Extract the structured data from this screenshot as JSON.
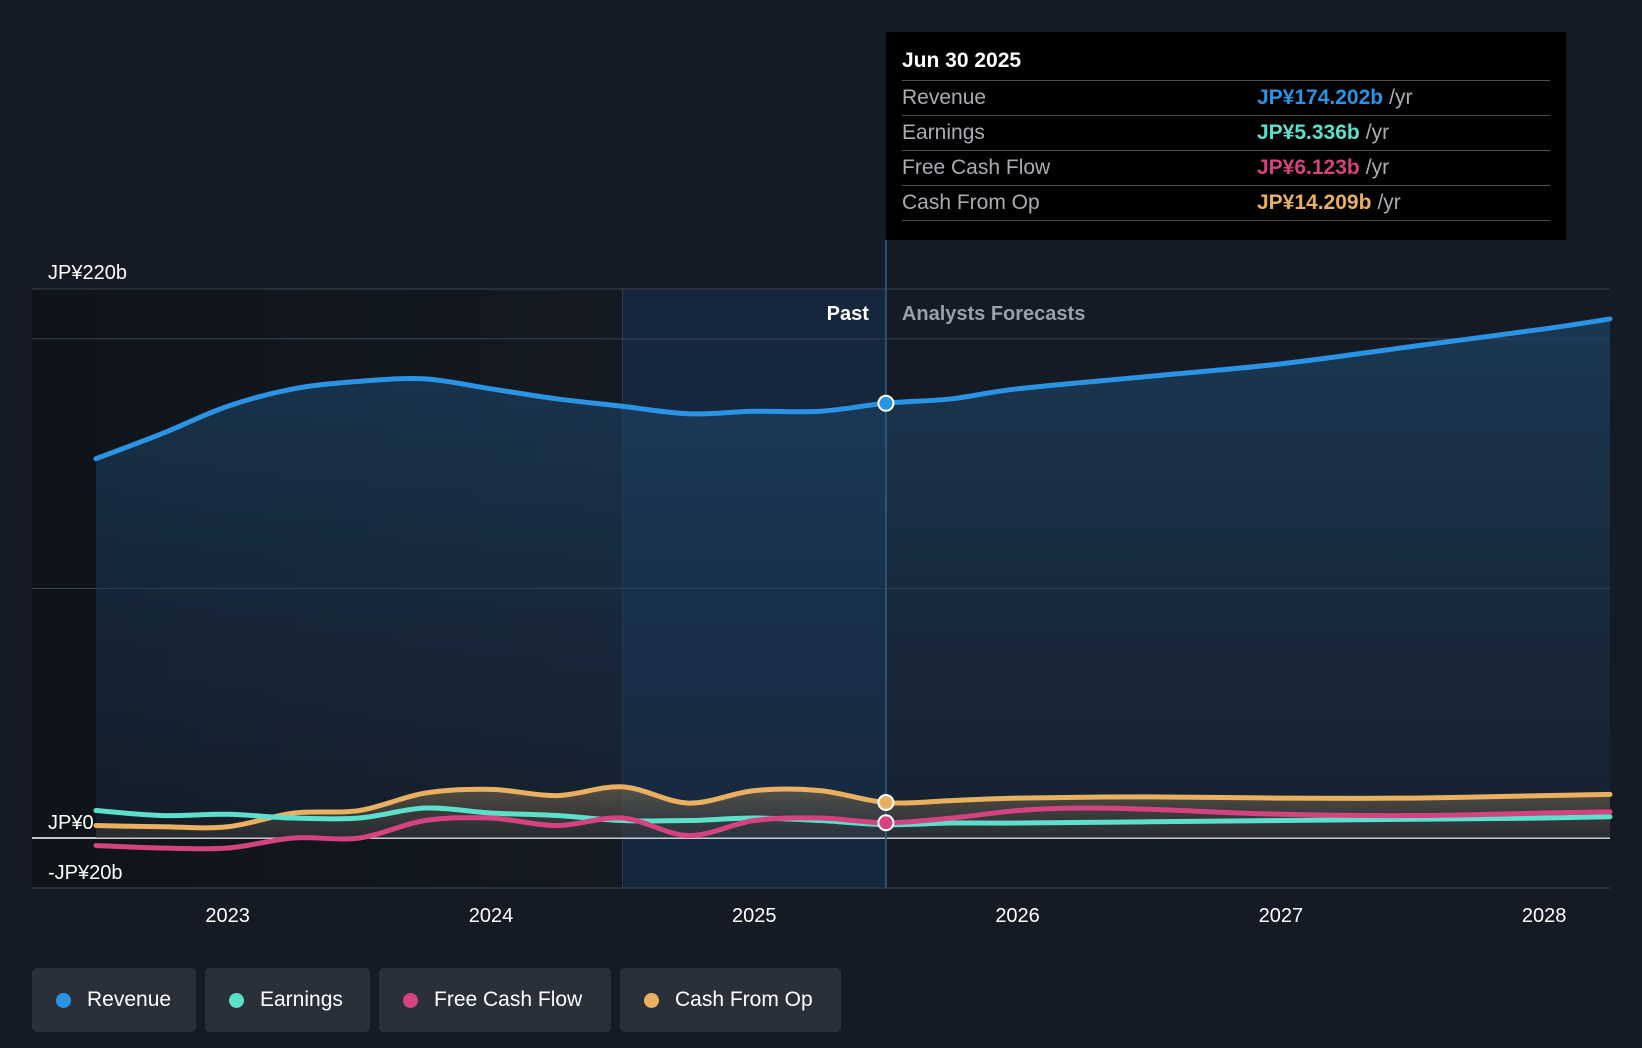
{
  "colors": {
    "revenue": "#2a93e4",
    "earnings": "#5ce0cc",
    "free_cash_flow": "#d4437f",
    "cash_from_op": "#e8b060",
    "background": "#151b24",
    "grid": "#3a4350",
    "zero_line": "#ffffff"
  },
  "tooltip": {
    "date": "Jun 30 2025",
    "rows": [
      {
        "name": "Revenue",
        "value": "JP¥174.202b",
        "unit": "/yr",
        "color": "#2a93e4"
      },
      {
        "name": "Earnings",
        "value": "JP¥5.336b",
        "unit": "/yr",
        "color": "#5ce0cc"
      },
      {
        "name": "Free Cash Flow",
        "value": "JP¥6.123b",
        "unit": "/yr",
        "color": "#d4437f"
      },
      {
        "name": "Cash From Op",
        "value": "JP¥14.209b",
        "unit": "/yr",
        "color": "#e8b060"
      }
    ]
  },
  "legend": [
    {
      "label": "Revenue",
      "color": "#2a93e4"
    },
    {
      "label": "Earnings",
      "color": "#5ce0cc"
    },
    {
      "label": "Free Cash Flow",
      "color": "#d4437f"
    },
    {
      "label": "Cash From Op",
      "color": "#e8b060"
    }
  ],
  "chart_data": {
    "type": "line",
    "title": "",
    "xlabel": "",
    "ylabel": "",
    "xlim": [
      2022.5,
      2028.25
    ],
    "ylim": [
      -20,
      220
    ],
    "y_ticks": [
      {
        "value": 220,
        "label": "JP¥220b"
      },
      {
        "value": 0,
        "label": "JP¥0"
      },
      {
        "value": -20,
        "label": "-JP¥20b"
      }
    ],
    "x_ticks": [
      {
        "value": 2023,
        "label": "2023"
      },
      {
        "value": 2024,
        "label": "2024"
      },
      {
        "value": 2025,
        "label": "2025"
      },
      {
        "value": 2026,
        "label": "2026"
      },
      {
        "value": 2027,
        "label": "2027"
      },
      {
        "value": 2028,
        "label": "2028"
      }
    ],
    "gridlines": [
      200,
      100
    ],
    "past_label": "Past",
    "forecast_label": "Analysts Forecasts",
    "highlight_start": 2024.5,
    "divider_x": 2025.5,
    "series": [
      {
        "name": "Revenue",
        "key": "revenue",
        "fill": true,
        "points": [
          [
            2022.5,
            152
          ],
          [
            2022.75,
            162
          ],
          [
            2023,
            173
          ],
          [
            2023.25,
            180
          ],
          [
            2023.5,
            183
          ],
          [
            2023.75,
            184
          ],
          [
            2024,
            180
          ],
          [
            2024.25,
            176
          ],
          [
            2024.5,
            173
          ],
          [
            2024.75,
            170
          ],
          [
            2025,
            171
          ],
          [
            2025.25,
            171
          ],
          [
            2025.5,
            174.2
          ],
          [
            2025.75,
            176
          ],
          [
            2026,
            180
          ],
          [
            2026.5,
            185
          ],
          [
            2027,
            190
          ],
          [
            2027.5,
            197
          ],
          [
            2028,
            204
          ],
          [
            2028.25,
            208
          ]
        ]
      },
      {
        "name": "Earnings",
        "key": "earnings",
        "fill": false,
        "points": [
          [
            2022.5,
            11
          ],
          [
            2022.75,
            9
          ],
          [
            2023,
            9.5
          ],
          [
            2023.25,
            8
          ],
          [
            2023.5,
            8
          ],
          [
            2023.75,
            12
          ],
          [
            2024,
            10
          ],
          [
            2024.25,
            9
          ],
          [
            2024.5,
            7
          ],
          [
            2024.75,
            7
          ],
          [
            2025,
            8
          ],
          [
            2025.25,
            7
          ],
          [
            2025.5,
            5.34
          ],
          [
            2025.75,
            6
          ],
          [
            2026,
            6
          ],
          [
            2026.5,
            6.5
          ],
          [
            2027,
            7
          ],
          [
            2027.5,
            7.5
          ],
          [
            2028,
            8
          ],
          [
            2028.25,
            8.5
          ]
        ]
      },
      {
        "name": "Free Cash Flow",
        "key": "free_cash_flow",
        "fill": false,
        "points": [
          [
            2022.5,
            -3
          ],
          [
            2022.75,
            -4
          ],
          [
            2023,
            -4
          ],
          [
            2023.25,
            0
          ],
          [
            2023.5,
            0
          ],
          [
            2023.75,
            7
          ],
          [
            2024,
            8
          ],
          [
            2024.25,
            5
          ],
          [
            2024.5,
            8
          ],
          [
            2024.75,
            1
          ],
          [
            2025,
            7
          ],
          [
            2025.25,
            8
          ],
          [
            2025.5,
            6.12
          ],
          [
            2025.75,
            8
          ],
          [
            2026,
            11
          ],
          [
            2026.25,
            12
          ],
          [
            2026.5,
            11.5
          ],
          [
            2027,
            9.5
          ],
          [
            2027.5,
            9
          ],
          [
            2028,
            10
          ],
          [
            2028.25,
            10.5
          ]
        ]
      },
      {
        "name": "Cash From Op",
        "key": "cash_from_op",
        "fill": true,
        "points": [
          [
            2022.5,
            5
          ],
          [
            2022.75,
            4.5
          ],
          [
            2023,
            4.5
          ],
          [
            2023.25,
            10
          ],
          [
            2023.5,
            11
          ],
          [
            2023.75,
            18
          ],
          [
            2024,
            19.5
          ],
          [
            2024.25,
            17
          ],
          [
            2024.5,
            20.5
          ],
          [
            2024.75,
            14
          ],
          [
            2025,
            19
          ],
          [
            2025.25,
            19
          ],
          [
            2025.5,
            14.21
          ],
          [
            2025.75,
            15
          ],
          [
            2026,
            16
          ],
          [
            2026.5,
            16.5
          ],
          [
            2027,
            16
          ],
          [
            2027.5,
            16
          ],
          [
            2028,
            17
          ],
          [
            2028.25,
            17.5
          ]
        ]
      }
    ],
    "markers": [
      {
        "series": "revenue",
        "x": 2025.5,
        "y": 174.2
      },
      {
        "series": "cash_from_op",
        "x": 2025.5,
        "y": 14.21
      },
      {
        "series": "free_cash_flow",
        "x": 2025.5,
        "y": 6.12
      }
    ]
  }
}
